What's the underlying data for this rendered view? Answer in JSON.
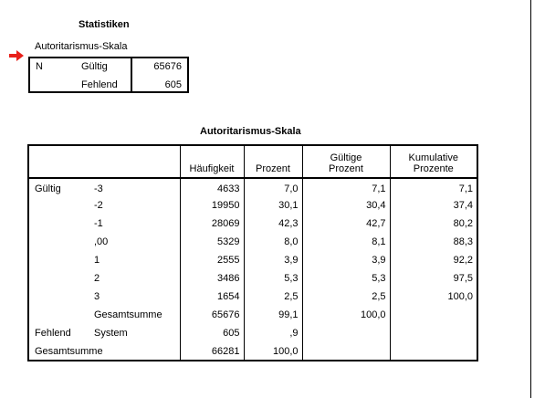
{
  "statistiken": {
    "title": "Statistiken",
    "subtitle": "Autoritarismus-Skala",
    "rows": [
      {
        "label1": "N",
        "label2": "Gültig",
        "value": "65676"
      },
      {
        "label1": "",
        "label2": "Fehlend",
        "value": "605"
      }
    ]
  },
  "frequency_table": {
    "title": "Autoritarismus-Skala",
    "headers": {
      "haeufigkeit": "Häufigkeit",
      "prozent": "Prozent",
      "gueltige_prozent_line1": "Gültige",
      "gueltige_prozent_line2": "Prozent",
      "kumulative_prozente_line1": "Kumulative",
      "kumulative_prozente_line2": "Prozente"
    },
    "rows": [
      {
        "group": "Gültig",
        "value": "-3",
        "haeufigkeit": "4633",
        "prozent": "7,0",
        "gueltige": "7,1",
        "kumulative": "7,1"
      },
      {
        "group": "",
        "value": "-2",
        "haeufigkeit": "19950",
        "prozent": "30,1",
        "gueltige": "30,4",
        "kumulative": "37,4"
      },
      {
        "group": "",
        "value": "-1",
        "haeufigkeit": "28069",
        "prozent": "42,3",
        "gueltige": "42,7",
        "kumulative": "80,2"
      },
      {
        "group": "",
        "value": ",00",
        "haeufigkeit": "5329",
        "prozent": "8,0",
        "gueltige": "8,1",
        "kumulative": "88,3"
      },
      {
        "group": "",
        "value": "1",
        "haeufigkeit": "2555",
        "prozent": "3,9",
        "gueltige": "3,9",
        "kumulative": "92,2"
      },
      {
        "group": "",
        "value": "2",
        "haeufigkeit": "3486",
        "prozent": "5,3",
        "gueltige": "5,3",
        "kumulative": "97,5"
      },
      {
        "group": "",
        "value": "3",
        "haeufigkeit": "1654",
        "prozent": "2,5",
        "gueltige": "2,5",
        "kumulative": "100,0"
      },
      {
        "group": "",
        "value": "Gesamtsumme",
        "haeufigkeit": "65676",
        "prozent": "99,1",
        "gueltige": "100,0",
        "kumulative": ""
      },
      {
        "group": "Fehlend",
        "value": "System",
        "haeufigkeit": "605",
        "prozent": ",9",
        "gueltige": "",
        "kumulative": ""
      },
      {
        "group": "Gesamtsumme",
        "value": "",
        "haeufigkeit": "66281",
        "prozent": "100,0",
        "gueltige": "",
        "kumulative": ""
      }
    ]
  },
  "icons": {
    "selection_marker": "red-arrow-icon"
  },
  "colors": {
    "arrow": "#e8201a"
  }
}
